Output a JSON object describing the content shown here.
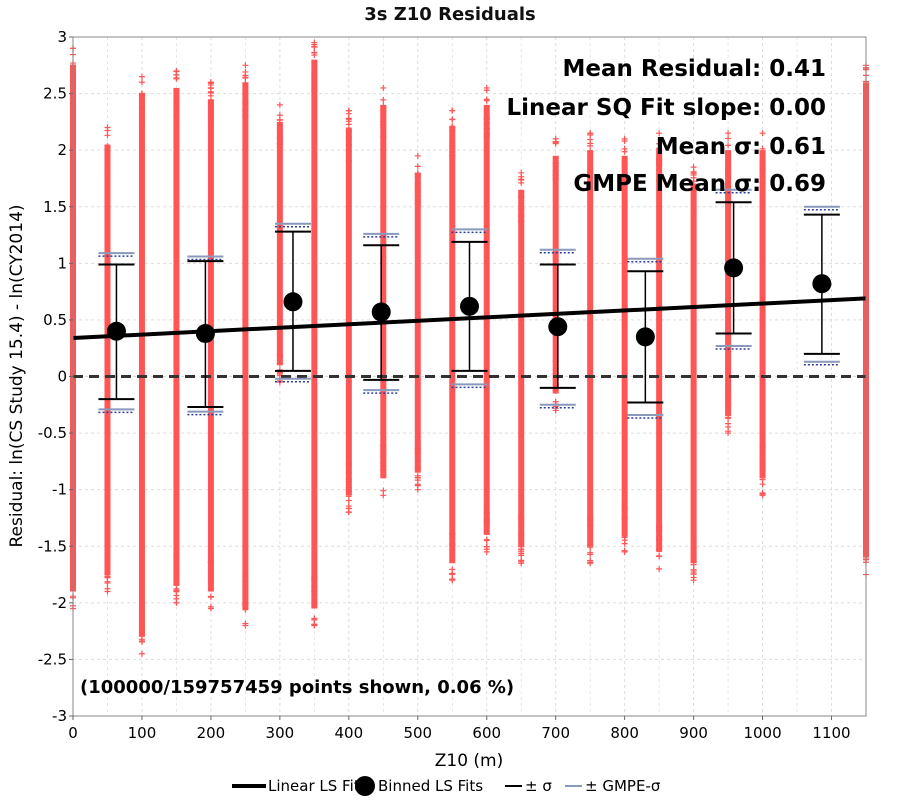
{
  "chart_data": {
    "type": "scatter",
    "title": "3s Z10 Residuals",
    "xlabel": "Z10 (m)",
    "ylabel": "Residual: ln(CS Study 15.4) - ln(CY2014)",
    "xlim": [
      0,
      1150
    ],
    "ylim": [
      -3,
      3
    ],
    "x_ticks": [
      0,
      100,
      200,
      300,
      400,
      500,
      600,
      700,
      800,
      900,
      1000,
      1100
    ],
    "y_ticks": [
      -3,
      -2.5,
      -2,
      -1.5,
      -1,
      -0.5,
      0,
      0.5,
      1,
      1.5,
      2,
      2.5,
      3
    ],
    "grid": true,
    "annotations": [
      "Mean Residual: 0.41",
      "Linear SQ Fit slope: 0.00",
      "Mean σ: 0.61",
      "GMPE Mean σ: 0.69"
    ],
    "footnote": "(100000/159757459 points shown, 0.06 %)",
    "colors": {
      "scatter": "#ff5555",
      "fit_line": "#000000",
      "binned": "#000000",
      "sigma": "#000000",
      "gmpe_sigma_solid": "#8899bb",
      "gmpe_sigma_dotted": "#2a3f9a",
      "zero_line": "#333333",
      "grid": "#dddddd"
    },
    "scatter_columns": [
      {
        "x": 0,
        "min": -2.05,
        "max": 2.9
      },
      {
        "x": 50,
        "min": -1.9,
        "max": 2.2
      },
      {
        "x": 100,
        "min": -2.45,
        "max": 2.65
      },
      {
        "x": 150,
        "min": -2.0,
        "max": 2.7
      },
      {
        "x": 200,
        "min": -2.05,
        "max": 2.6
      },
      {
        "x": 250,
        "min": -2.2,
        "max": 2.75
      },
      {
        "x": 300,
        "min": -0.05,
        "max": 2.4
      },
      {
        "x": 350,
        "min": -2.2,
        "max": 2.95
      },
      {
        "x": 400,
        "min": -1.2,
        "max": 2.35
      },
      {
        "x": 450,
        "min": -1.05,
        "max": 2.55
      },
      {
        "x": 500,
        "min": -1.0,
        "max": 1.95
      },
      {
        "x": 550,
        "min": -1.8,
        "max": 2.35
      },
      {
        "x": 600,
        "min": -1.55,
        "max": 2.55
      },
      {
        "x": 650,
        "min": -1.65,
        "max": 1.8
      },
      {
        "x": 700,
        "min": -0.3,
        "max": 2.1
      },
      {
        "x": 750,
        "min": -1.65,
        "max": 2.15
      },
      {
        "x": 800,
        "min": -1.55,
        "max": 2.1
      },
      {
        "x": 850,
        "min": -1.7,
        "max": 2.15
      },
      {
        "x": 900,
        "min": -1.8,
        "max": 1.85
      },
      {
        "x": 950,
        "min": -0.5,
        "max": 2.15
      },
      {
        "x": 1000,
        "min": -1.05,
        "max": 2.15
      },
      {
        "x": 1150,
        "min": -1.75,
        "max": 2.75
      }
    ],
    "fit_line": {
      "x": [
        0,
        1150
      ],
      "y": [
        0.34,
        0.69
      ]
    },
    "binned": [
      {
        "x": 63,
        "y": 0.4,
        "sigma_lo": -0.2,
        "sigma_hi": 0.99,
        "gmpe_lo": -0.29,
        "gmpe_hi": 1.09
      },
      {
        "x": 192,
        "y": 0.38,
        "sigma_lo": -0.27,
        "sigma_hi": 1.02,
        "gmpe_lo": -0.31,
        "gmpe_hi": 1.06
      },
      {
        "x": 319,
        "y": 0.66,
        "sigma_lo": 0.05,
        "sigma_hi": 1.28,
        "gmpe_lo": -0.02,
        "gmpe_hi": 1.35
      },
      {
        "x": 447,
        "y": 0.57,
        "sigma_lo": -0.03,
        "sigma_hi": 1.16,
        "gmpe_lo": -0.12,
        "gmpe_hi": 1.26
      },
      {
        "x": 575,
        "y": 0.62,
        "sigma_lo": 0.05,
        "sigma_hi": 1.19,
        "gmpe_lo": -0.07,
        "gmpe_hi": 1.3
      },
      {
        "x": 703,
        "y": 0.44,
        "sigma_lo": -0.1,
        "sigma_hi": 0.99,
        "gmpe_lo": -0.25,
        "gmpe_hi": 1.12
      },
      {
        "x": 830,
        "y": 0.35,
        "sigma_lo": -0.23,
        "sigma_hi": 0.93,
        "gmpe_lo": -0.34,
        "gmpe_hi": 1.04
      },
      {
        "x": 958,
        "y": 0.96,
        "sigma_lo": 0.38,
        "sigma_hi": 1.54,
        "gmpe_lo": 0.27,
        "gmpe_hi": 1.65
      },
      {
        "x": 1086,
        "y": 0.82,
        "sigma_lo": 0.2,
        "sigma_hi": 1.43,
        "gmpe_lo": 0.13,
        "gmpe_hi": 1.5
      }
    ],
    "legend_placement": "bottom",
    "legend": [
      {
        "key": "fit",
        "label": "Linear LS Fit"
      },
      {
        "key": "binned",
        "label": "Binned LS Fits"
      },
      {
        "key": "sigma",
        "label": "± σ"
      },
      {
        "key": "gmpe",
        "label": "± GMPE-σ"
      }
    ]
  }
}
